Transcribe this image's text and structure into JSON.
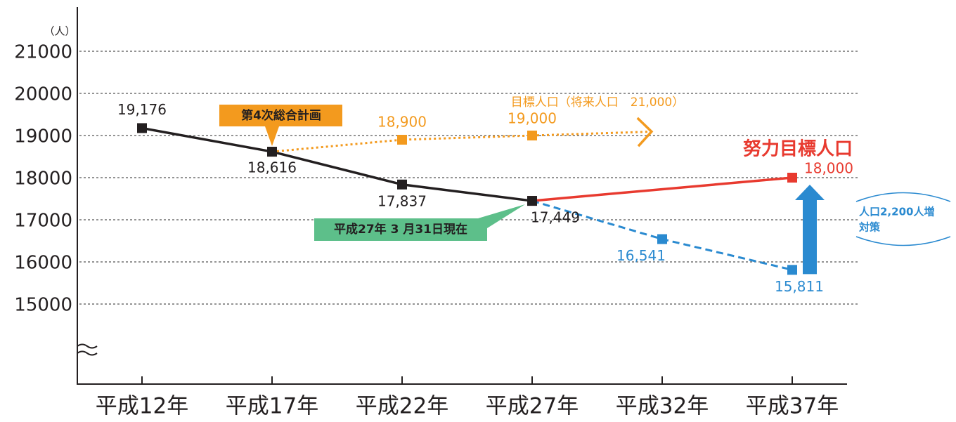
{
  "chart_data": {
    "type": "line",
    "unit_label": "（人）",
    "categories": [
      "平成12年",
      "平成17年",
      "平成22年",
      "平成27年",
      "平成32年",
      "平成37年"
    ],
    "ylim": [
      13100,
      22050
    ],
    "yticks": [
      15000,
      16000,
      17000,
      18000,
      19000,
      20000,
      21000
    ],
    "grid": true,
    "series": [
      {
        "color": "#231f20",
        "line_style": "solid",
        "x": [
          "平成12年",
          "平成17年",
          "平成22年",
          "平成27年"
        ],
        "values": [
          19176,
          18616,
          17837,
          17449
        ],
        "value_labels": [
          "19,176",
          "18,616",
          "17,837",
          "17,449"
        ]
      },
      {
        "name": "目標人口（将来人口　21,000）",
        "color": "#f39a1e",
        "line_style": "dotted",
        "arrow": true,
        "x": [
          "平成17年",
          "平成22年",
          "平成27年"
        ],
        "values": [
          18616,
          18900,
          19000
        ],
        "value_labels": [
          null,
          "18,900",
          "19,000"
        ]
      },
      {
        "name": "努力目標人口",
        "color": "#e83a2f",
        "line_style": "solid",
        "x": [
          "平成27年",
          "平成37年"
        ],
        "values": [
          17449,
          18000
        ],
        "value_labels": [
          null,
          "18,000"
        ]
      },
      {
        "color": "#2a8ad0",
        "line_style": "dashed",
        "x": [
          "平成27年",
          "平成32年",
          "平成37年"
        ],
        "values": [
          17449,
          16541,
          15811
        ],
        "value_labels": [
          null,
          "16,541",
          "15,811"
        ]
      }
    ],
    "annotations": {
      "plan": "第4次総合計画",
      "as_of": "平成27年 3 月31日現在",
      "increase_plan": [
        "人口2,200人増",
        "対策"
      ]
    }
  }
}
